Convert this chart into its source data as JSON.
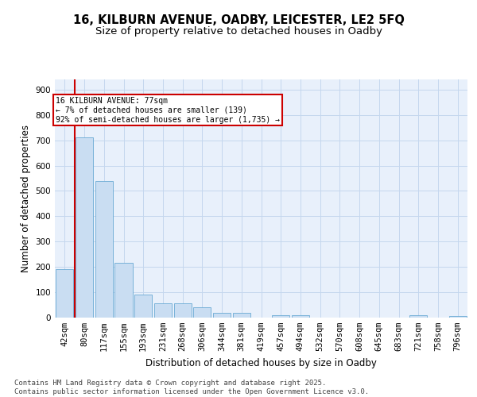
{
  "title_line1": "16, KILBURN AVENUE, OADBY, LEICESTER, LE2 5FQ",
  "title_line2": "Size of property relative to detached houses in Oadby",
  "xlabel": "Distribution of detached houses by size in Oadby",
  "ylabel": "Number of detached properties",
  "categories": [
    "42sqm",
    "80sqm",
    "117sqm",
    "155sqm",
    "193sqm",
    "231sqm",
    "268sqm",
    "306sqm",
    "344sqm",
    "381sqm",
    "419sqm",
    "457sqm",
    "494sqm",
    "532sqm",
    "570sqm",
    "608sqm",
    "645sqm",
    "683sqm",
    "721sqm",
    "758sqm",
    "796sqm"
  ],
  "values": [
    190,
    710,
    540,
    215,
    90,
    55,
    55,
    40,
    20,
    20,
    0,
    10,
    10,
    0,
    0,
    0,
    0,
    0,
    10,
    0,
    5
  ],
  "bar_color": "#c9ddf2",
  "bar_edge_color": "#6aaad4",
  "grid_color": "#c4d7ee",
  "background_color": "#e8f0fb",
  "property_line_color": "#cc0000",
  "annotation_text": "16 KILBURN AVENUE: 77sqm\n← 7% of detached houses are smaller (139)\n92% of semi-detached houses are larger (1,735) →",
  "annotation_box_color": "#cc0000",
  "ylim": [
    0,
    940
  ],
  "yticks": [
    0,
    100,
    200,
    300,
    400,
    500,
    600,
    700,
    800,
    900
  ],
  "footer_text": "Contains HM Land Registry data © Crown copyright and database right 2025.\nContains public sector information licensed under the Open Government Licence v3.0.",
  "title_fontsize": 10.5,
  "subtitle_fontsize": 9.5,
  "axis_label_fontsize": 8.5,
  "tick_fontsize": 7.5,
  "footer_fontsize": 6.5
}
